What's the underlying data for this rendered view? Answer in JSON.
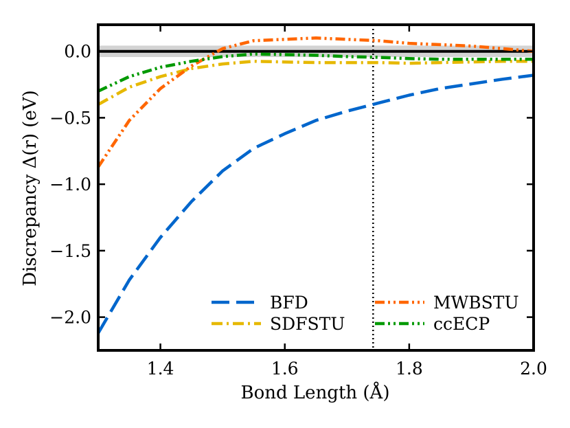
{
  "chart_data": {
    "type": "line",
    "title": "",
    "xlabel": "Bond Length (Å)",
    "ylabel": "Discrepancy Δ(r) (eV)",
    "xlim": [
      1.3,
      2.0
    ],
    "ylim": [
      -2.25,
      0.2
    ],
    "xticks": [
      1.4,
      1.6,
      1.8,
      2.0
    ],
    "xtick_labels": [
      "1.4",
      "1.6",
      "1.8",
      "2.0"
    ],
    "yticks": [
      0.0,
      -0.5,
      -1.0,
      -1.5,
      -2.0
    ],
    "ytick_labels": [
      "0.0",
      "−0.5",
      "−1.0",
      "−1.5",
      "−2.0"
    ],
    "reference_line": {
      "y": 0.0,
      "band": [
        -0.043,
        0.043
      ]
    },
    "vertical_marker": {
      "x": 1.742
    },
    "legend_location": "lower-right",
    "series": [
      {
        "name": "BFD",
        "color": "#0066cc",
        "dash": "long-dash",
        "x": [
          1.3,
          1.35,
          1.4,
          1.45,
          1.5,
          1.55,
          1.6,
          1.65,
          1.7,
          1.75,
          1.8,
          1.85,
          1.9,
          1.95,
          2.0
        ],
        "y": [
          -2.12,
          -1.72,
          -1.4,
          -1.13,
          -0.9,
          -0.73,
          -0.62,
          -0.52,
          -0.45,
          -0.39,
          -0.33,
          -0.28,
          -0.245,
          -0.21,
          -0.18
        ]
      },
      {
        "name": "SDFSTU",
        "color": "#e6b800",
        "dash": "dash-dot",
        "x": [
          1.3,
          1.35,
          1.4,
          1.45,
          1.5,
          1.55,
          1.6,
          1.65,
          1.7,
          1.75,
          1.8,
          1.85,
          1.9,
          1.95,
          2.0
        ],
        "y": [
          -0.4,
          -0.27,
          -0.19,
          -0.13,
          -0.095,
          -0.075,
          -0.08,
          -0.085,
          -0.085,
          -0.085,
          -0.09,
          -0.085,
          -0.08,
          -0.075,
          -0.075
        ]
      },
      {
        "name": "MWBSTU",
        "color": "#ff6600",
        "dash": "dash-dot-dot",
        "x": [
          1.3,
          1.35,
          1.4,
          1.45,
          1.5,
          1.55,
          1.6,
          1.65,
          1.7,
          1.75,
          1.8,
          1.85,
          1.9,
          1.95,
          2.0
        ],
        "y": [
          -0.87,
          -0.52,
          -0.28,
          -0.11,
          0.02,
          0.08,
          0.09,
          0.1,
          0.09,
          0.08,
          0.06,
          0.05,
          0.04,
          0.02,
          0.0
        ]
      },
      {
        "name": "ccECP",
        "color": "#009900",
        "dash": "dash-dot-dot",
        "x": [
          1.3,
          1.35,
          1.4,
          1.45,
          1.5,
          1.55,
          1.6,
          1.65,
          1.7,
          1.75,
          1.8,
          1.85,
          1.9,
          1.95,
          2.0
        ],
        "y": [
          -0.3,
          -0.19,
          -0.12,
          -0.075,
          -0.04,
          -0.02,
          -0.025,
          -0.03,
          -0.04,
          -0.045,
          -0.055,
          -0.06,
          -0.06,
          -0.06,
          -0.06
        ]
      }
    ]
  }
}
